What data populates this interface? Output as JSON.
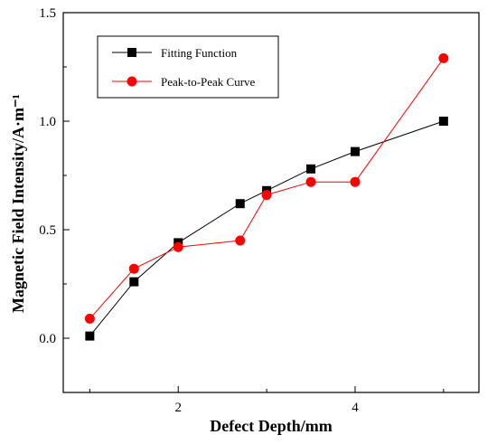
{
  "chart_data": {
    "type": "line",
    "title": "",
    "xlabel": "Defect Depth/mm",
    "ylabel": "Magnetic Field Intensity/A·m⁻¹",
    "xlim": [
      0.7,
      5.4
    ],
    "ylim": [
      -0.25,
      1.5
    ],
    "x_ticks": [
      2,
      4
    ],
    "x_tick_labels": [
      "2",
      "4"
    ],
    "y_ticks": [
      0.0,
      0.5,
      1.0,
      1.5
    ],
    "y_tick_labels": [
      "0.0",
      "0.5",
      "1.0",
      "1.5"
    ],
    "grid": false,
    "legend_position": "top-left",
    "series": [
      {
        "name": "Fitting Function",
        "color": "#000000",
        "marker": "square",
        "x": [
          1.0,
          1.5,
          2.0,
          2.7,
          3.0,
          3.5,
          4.0,
          5.0
        ],
        "y": [
          0.01,
          0.26,
          0.44,
          0.62,
          0.68,
          0.78,
          0.86,
          1.0
        ]
      },
      {
        "name": "Peak-to-Peak Curve",
        "color": "#ff0000",
        "marker": "circle",
        "x": [
          1.0,
          1.5,
          2.0,
          2.7,
          3.0,
          3.5,
          4.0,
          5.0
        ],
        "y": [
          0.09,
          0.32,
          0.42,
          0.45,
          0.66,
          0.72,
          0.72,
          1.29
        ]
      }
    ]
  }
}
